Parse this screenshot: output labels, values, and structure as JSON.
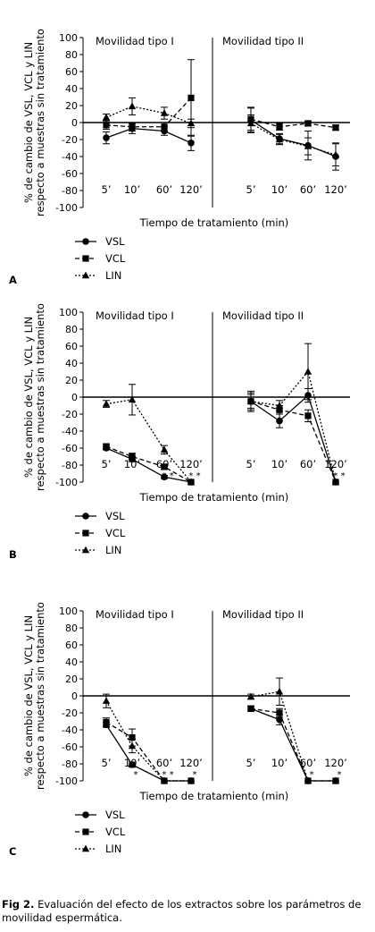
{
  "figure": {
    "caption_label": "Fig 2.",
    "caption_text": "Evaluación del efecto de los extractos sobre los parámetros de movilidad espermática."
  },
  "chart_data": [
    {
      "type": "line",
      "panel_label": "A",
      "ylabel": "% de cambio de VSL, VCL y LIN respecto a muestras sin tratamiento",
      "xlabel": "Tiempo de tratamiento (min)",
      "ylim": [
        -100,
        100
      ],
      "yticks": [
        100,
        80,
        60,
        40,
        20,
        0,
        -20,
        -40,
        -60,
        -80,
        -100
      ],
      "groups": [
        {
          "title": "Movilidad tipo I",
          "categories": [
            "5’",
            "10’",
            "60’",
            "120’"
          ],
          "series": [
            {
              "name": "VSL",
              "values": [
                -18,
                -7,
                -10,
                -24
              ],
              "errors": [
                7,
                6,
                5,
                9
              ]
            },
            {
              "name": "VCL",
              "values": [
                -3,
                -5,
                -5,
                29
              ],
              "errors": [
                5,
                5,
                5,
                45
              ]
            },
            {
              "name": "LIN",
              "values": [
                6,
                19,
                11,
                -1
              ],
              "errors": [
                4,
                10,
                7,
                5
              ]
            }
          ],
          "significance": [
            "",
            "",
            "",
            ""
          ]
        },
        {
          "title": "Movilidad tipo II",
          "categories": [
            "5’",
            "10’",
            "60’",
            "120’"
          ],
          "series": [
            {
              "name": "VSL",
              "values": [
                3,
                -19,
                -27,
                -40
              ],
              "errors": [
                15,
                6,
                17,
                16
              ]
            },
            {
              "name": "VCL",
              "values": [
                4,
                -5,
                -1,
                -6
              ],
              "errors": [
                13,
                4,
                3,
                3
              ]
            },
            {
              "name": "LIN",
              "values": [
                -1,
                -20,
                -28,
                -38
              ],
              "errors": [
                10,
                6,
                10,
                13
              ]
            }
          ],
          "significance": [
            "",
            "",
            "",
            ""
          ]
        }
      ],
      "legend": [
        "VSL",
        "VCL",
        "LIN"
      ]
    },
    {
      "type": "line",
      "panel_label": "B",
      "ylabel": "% de cambio de VSL, VCL y LIN respecto a muestras sin tratamiento",
      "xlabel": "Tiempo de tratamiento (min)",
      "ylim": [
        -100,
        100
      ],
      "yticks": [
        100,
        80,
        60,
        40,
        20,
        0,
        -20,
        -40,
        -60,
        -80,
        -100
      ],
      "groups": [
        {
          "title": "Movilidad tipo I",
          "categories": [
            "5’",
            "10’",
            "60’",
            "120’"
          ],
          "series": [
            {
              "name": "VSL",
              "values": [
                -60,
                -73,
                -94,
                -100
              ],
              "errors": [
                2,
                3,
                2,
                0
              ]
            },
            {
              "name": "VCL",
              "values": [
                -58,
                -70,
                -82,
                -100
              ],
              "errors": [
                3,
                4,
                3,
                0
              ]
            },
            {
              "name": "LIN",
              "values": [
                -8,
                -3,
                -62,
                -100
              ],
              "errors": [
                4,
                18,
                5,
                0
              ]
            }
          ],
          "significance": [
            "",
            "",
            "*  *",
            "* *"
          ]
        },
        {
          "title": "Movilidad tipo II",
          "categories": [
            "5’",
            "10’",
            "60’",
            "120’"
          ],
          "series": [
            {
              "name": "VSL",
              "values": [
                -5,
                -28,
                2,
                -100
              ],
              "errors": [
                12,
                8,
                8,
                0
              ]
            },
            {
              "name": "VCL",
              "values": [
                -5,
                -15,
                -22,
                -100
              ],
              "errors": [
                8,
                5,
                7,
                0
              ]
            },
            {
              "name": "LIN",
              "values": [
                -5,
                -10,
                30,
                -100
              ],
              "errors": [
                10,
                6,
                33,
                0
              ]
            }
          ],
          "significance": [
            "",
            "",
            "",
            "* *"
          ]
        }
      ],
      "legend": [
        "VSL",
        "VCL",
        "LIN"
      ]
    },
    {
      "type": "line",
      "panel_label": "C",
      "ylabel": "% de cambio de VSL, VCL y LIN respecto a muestras sin tratamiento",
      "xlabel": "Tiempo de tratamiento (min)",
      "ylim": [
        -100,
        100
      ],
      "yticks": [
        100,
        80,
        60,
        40,
        20,
        0,
        -20,
        -40,
        -60,
        -80,
        -100
      ],
      "groups": [
        {
          "title": "Movilidad tipo I",
          "categories": [
            "5’",
            "10’",
            "60’",
            "120’"
          ],
          "series": [
            {
              "name": "VSL",
              "values": [
                -34,
                -81,
                -100,
                -100
              ],
              "errors": [
                3,
                3,
                0,
                0
              ]
            },
            {
              "name": "VCL",
              "values": [
                -31,
                -49,
                -100,
                -100
              ],
              "errors": [
                5,
                10,
                0,
                0
              ]
            },
            {
              "name": "LIN",
              "values": [
                -6,
                -59,
                -100,
                -100
              ],
              "errors": [
                8,
                8,
                0,
                0
              ]
            }
          ],
          "significance": [
            "",
            "*",
            "* *",
            "*"
          ]
        },
        {
          "title": "Movilidad tipo II",
          "categories": [
            "5’",
            "10’",
            "60’",
            "120’"
          ],
          "series": [
            {
              "name": "VSL",
              "values": [
                -15,
                -28,
                -100,
                -100
              ],
              "errors": [
                3,
                6,
                0,
                0
              ]
            },
            {
              "name": "VCL",
              "values": [
                -15,
                -20,
                -100,
                -100
              ],
              "errors": [
                3,
                5,
                0,
                0
              ]
            },
            {
              "name": "LIN",
              "values": [
                -1,
                5,
                -100,
                -100
              ],
              "errors": [
                3,
                16,
                0,
                0
              ]
            }
          ],
          "significance": [
            "",
            "",
            "*",
            "*"
          ]
        }
      ],
      "legend": [
        "VSL",
        "VCL",
        "LIN"
      ]
    }
  ]
}
